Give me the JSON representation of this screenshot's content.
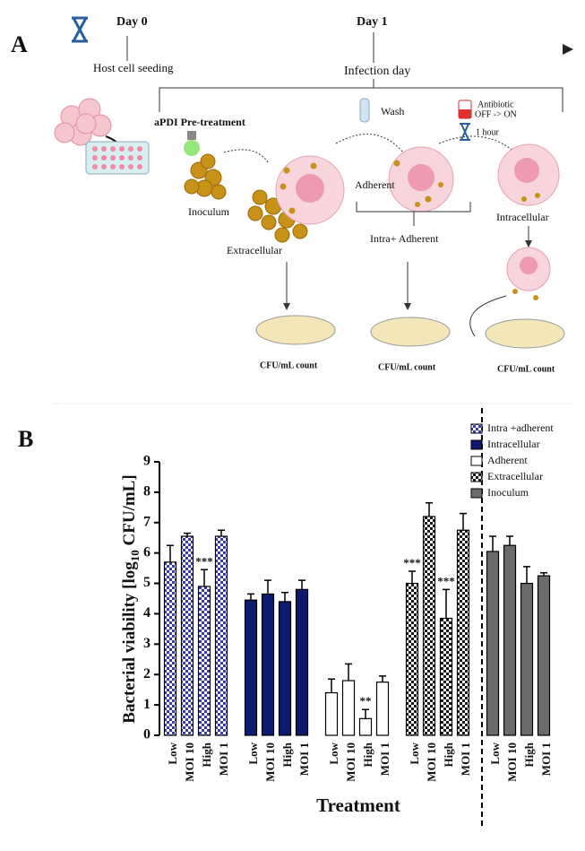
{
  "panel_labels": [
    "A",
    "B"
  ],
  "timeline": {
    "day0": "Day 0",
    "day1": "Day 1",
    "seeding": "Host cell seeding",
    "infection": "Infection day"
  },
  "workflow": {
    "pretreatment": "aPDI Pre-treatment",
    "inoculum": "Inoculum",
    "extracellular": "Extracellular",
    "wash": "Wash",
    "antibiotic": "Antibiotic",
    "antibiotic_switch": "OFF -> ON",
    "duration": "1 hour",
    "adherent": "Adherent",
    "intra_adherent": "Intra+ Adherent",
    "intracellular": "Intracellular",
    "counts": [
      "CFU/mL count",
      "CFU/mL count",
      "CFU/mL count"
    ]
  },
  "chart_data": {
    "type": "bar",
    "xlabel": "Treatment",
    "ylabel": [
      "Bacterial viability [log",
      "10",
      " CFU/mL]"
    ],
    "categories": [
      "Low",
      "MOI 10",
      "High",
      "MOI 1"
    ],
    "ylim": [
      0,
      9
    ],
    "yticks": [
      0,
      1,
      2,
      3,
      4,
      5,
      6,
      7,
      8,
      9
    ],
    "legend": "upper right",
    "series": [
      {
        "name": "Intra +adherent",
        "color": "#3b3bb0",
        "pattern": "checker",
        "values": [
          5.7,
          6.55,
          4.9,
          6.55
        ],
        "errors": [
          0.55,
          0.1,
          0.55,
          0.2
        ],
        "annotations": [
          null,
          null,
          "***",
          null
        ]
      },
      {
        "name": "Intracellular",
        "color": "#0d1a6e",
        "pattern": "solid",
        "values": [
          4.45,
          4.65,
          4.4,
          4.8
        ],
        "errors": [
          0.2,
          0.45,
          0.3,
          0.3
        ],
        "annotations": [
          null,
          null,
          null,
          null
        ]
      },
      {
        "name": "Adherent",
        "color": "#ffffff",
        "pattern": "solid",
        "values": [
          1.4,
          1.8,
          0.55,
          1.75
        ],
        "errors": [
          0.45,
          0.55,
          0.3,
          0.2
        ],
        "annotations": [
          null,
          null,
          "**",
          null
        ]
      },
      {
        "name": "Extracellular",
        "color": "#1a1a1a",
        "pattern": "checker",
        "values": [
          5.0,
          7.2,
          3.85,
          6.75
        ],
        "errors": [
          0.4,
          0.45,
          0.95,
          0.55
        ],
        "annotations": [
          "***",
          null,
          "***",
          null
        ]
      },
      {
        "name": "Inoculum",
        "color": "#6b6b6b",
        "pattern": "solid",
        "values": [
          6.05,
          6.25,
          5.0,
          5.25
        ],
        "errors": [
          0.5,
          0.3,
          0.55,
          0.1
        ],
        "annotations": [
          null,
          null,
          null,
          null
        ]
      }
    ]
  }
}
